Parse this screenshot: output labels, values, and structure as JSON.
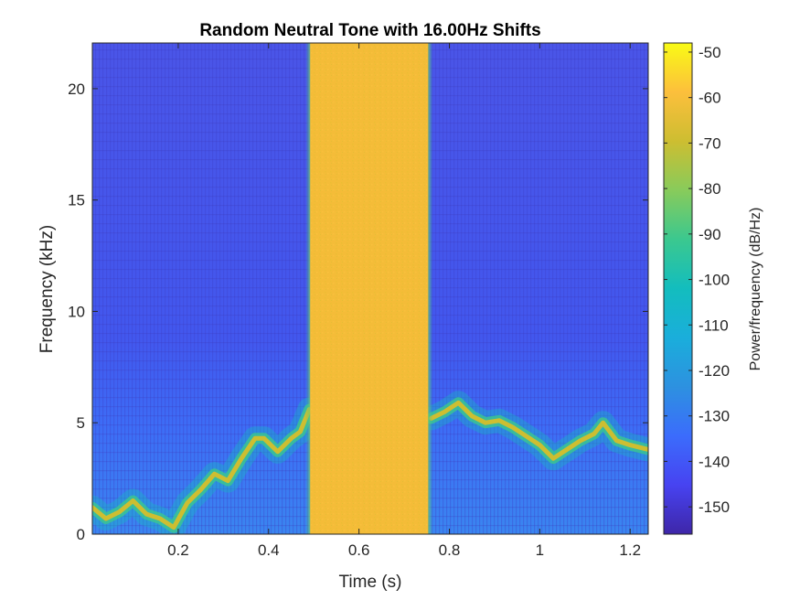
{
  "chart_data": {
    "type": "heatmap",
    "title": "Random Neutral Tone with 16.00Hz Shifts",
    "xlabel": "Time (s)",
    "ylabel": "Frequency (kHz)",
    "xlim": [
      0.01,
      1.24
    ],
    "ylim": [
      0,
      22.05
    ],
    "xticks": [
      0.2,
      0.4,
      0.6,
      0.8,
      1,
      1.2
    ],
    "xtick_labels": [
      "0.2",
      "0.4",
      "0.6",
      "0.8",
      "1",
      "1.2"
    ],
    "yticks": [
      0,
      5,
      10,
      15,
      20
    ],
    "ytick_labels": [
      "0",
      "5",
      "10",
      "15",
      "20"
    ],
    "colorbar": {
      "label": "Power/frequency (dB/Hz)",
      "clim": [
        -156,
        -48
      ],
      "ticks": [
        -150,
        -140,
        -130,
        -120,
        -110,
        -100,
        -90,
        -80,
        -70,
        -60,
        -50
      ],
      "tick_labels": [
        "-150",
        "-140",
        "-130",
        "-120",
        "-110",
        "-100",
        "-90",
        "-80",
        "-70",
        "-60",
        "-50"
      ],
      "colormap": "parula",
      "colors": [
        "#3e26a8",
        "#4743f1",
        "#3b6cfc",
        "#2d91e0",
        "#1aaedb",
        "#13bdbe",
        "#3bc88f",
        "#88cb5b",
        "#cdbe31",
        "#fcbf3c",
        "#f9fb15"
      ]
    },
    "background_level_db": -140,
    "broadband_block": {
      "t_start": 0.49,
      "t_end": 0.755,
      "level_db": -65
    },
    "tone_track": {
      "level_db": -70,
      "time_s": [
        0.01,
        0.04,
        0.07,
        0.1,
        0.13,
        0.16,
        0.19,
        0.22,
        0.25,
        0.28,
        0.31,
        0.34,
        0.37,
        0.39,
        0.42,
        0.45,
        0.47,
        0.49,
        0.76,
        0.79,
        0.82,
        0.85,
        0.88,
        0.91,
        0.94,
        0.97,
        1.0,
        1.03,
        1.06,
        1.09,
        1.12,
        1.14,
        1.17,
        1.2,
        1.24
      ],
      "freq_khz": [
        1.2,
        0.7,
        1.0,
        1.5,
        0.9,
        0.7,
        0.3,
        1.4,
        2.0,
        2.7,
        2.4,
        3.4,
        4.3,
        4.3,
        3.7,
        4.3,
        4.6,
        5.6,
        5.2,
        5.5,
        5.9,
        5.3,
        5.0,
        5.1,
        4.8,
        4.4,
        4.0,
        3.4,
        3.8,
        4.2,
        4.5,
        5.0,
        4.2,
        4.0,
        3.8
      ]
    }
  }
}
